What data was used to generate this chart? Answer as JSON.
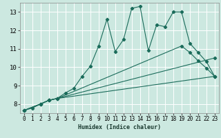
{
  "title": "",
  "xlabel": "Humidex (Indice chaleur)",
  "ylabel": "",
  "background_color": "#cce8e0",
  "grid_color": "#ffffff",
  "line_color": "#1a6b5a",
  "xlim": [
    -0.5,
    23.5
  ],
  "ylim": [
    7.5,
    13.5
  ],
  "xticks": [
    0,
    1,
    2,
    3,
    4,
    5,
    6,
    7,
    8,
    9,
    10,
    11,
    12,
    13,
    14,
    15,
    16,
    17,
    18,
    19,
    20,
    21,
    22,
    23
  ],
  "yticks": [
    8,
    9,
    10,
    11,
    12,
    13
  ],
  "series": [
    {
      "x": [
        0,
        1,
        2,
        3,
        4,
        5,
        6,
        7,
        8,
        9,
        10,
        11,
        12,
        13,
        14,
        15,
        16,
        17,
        18,
        19,
        20,
        21,
        22,
        23
      ],
      "y": [
        7.65,
        7.78,
        8.0,
        8.2,
        8.3,
        8.6,
        8.85,
        9.5,
        10.05,
        11.15,
        12.6,
        10.85,
        11.5,
        13.2,
        13.3,
        10.9,
        12.3,
        12.2,
        13.0,
        13.0,
        11.3,
        10.8,
        10.3,
        9.5
      ]
    },
    {
      "x": [
        0,
        2,
        3,
        4,
        23
      ],
      "y": [
        7.65,
        8.0,
        8.2,
        8.3,
        9.5
      ]
    },
    {
      "x": [
        0,
        2,
        3,
        4,
        23
      ],
      "y": [
        7.65,
        8.0,
        8.2,
        8.3,
        10.5
      ]
    },
    {
      "x": [
        0,
        2,
        3,
        4,
        19,
        20,
        21,
        22,
        23
      ],
      "y": [
        7.65,
        8.0,
        8.2,
        8.3,
        11.15,
        10.8,
        10.35,
        9.95,
        9.5
      ]
    }
  ]
}
